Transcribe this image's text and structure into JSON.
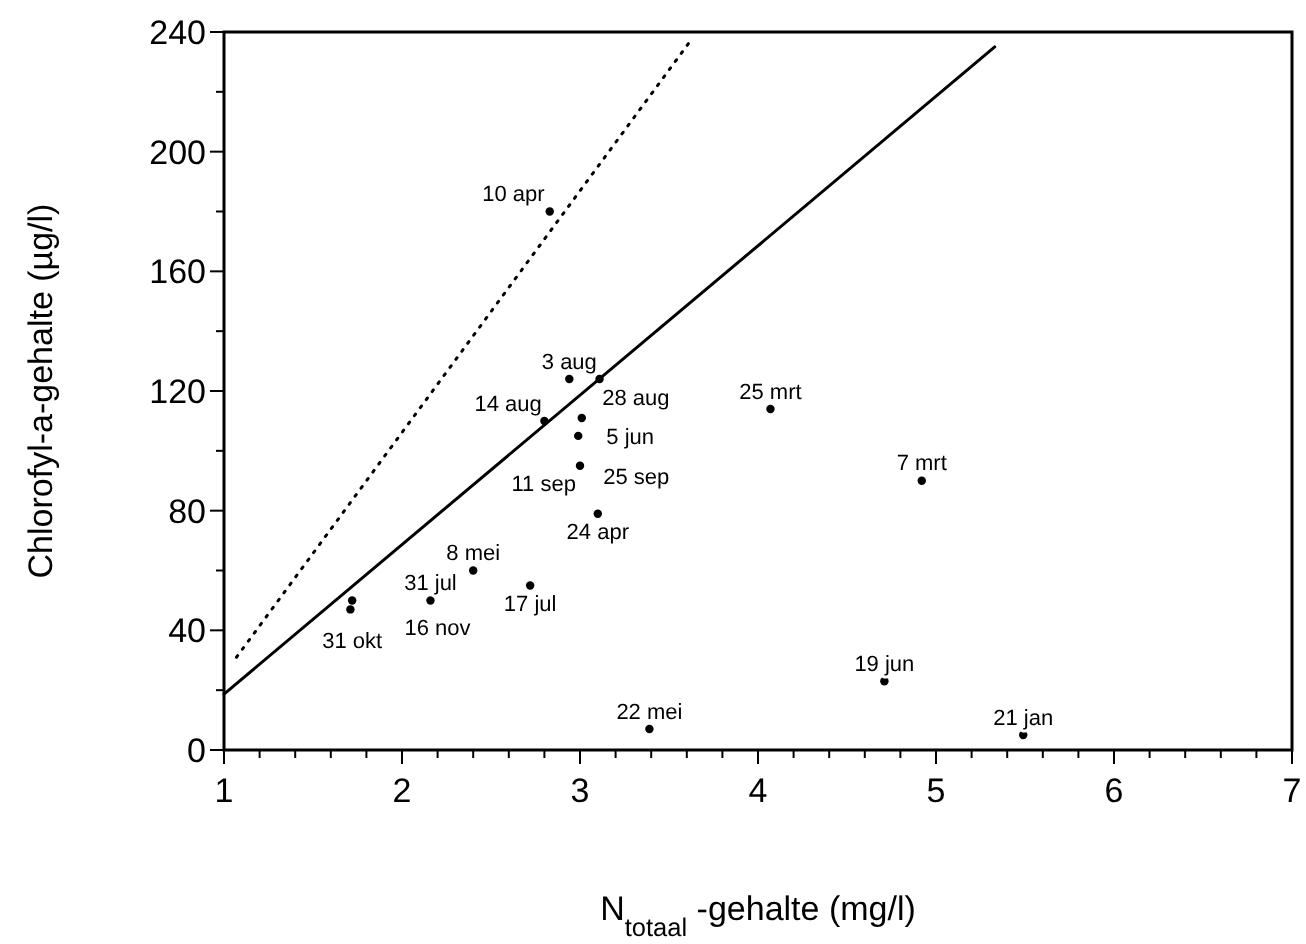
{
  "chart_data": {
    "type": "scatter",
    "xlabel": "N$_{totaal}$ -gehalte (mg/l)",
    "ylabel": "Chlorofyl-a-gehalte (µg/l)",
    "xlim": [
      1,
      7
    ],
    "ylim": [
      0,
      240
    ],
    "xticks": [
      1,
      {
        "value": 1.2,
        "label": null
      },
      {
        "value": 1.4,
        "label": null
      },
      {
        "value": 1.6,
        "label": null
      },
      {
        "value": 1.8,
        "label": null
      },
      2,
      {
        "value": 2.2,
        "label": null
      },
      {
        "value": 2.4,
        "label": null
      },
      {
        "value": 2.6,
        "label": null
      },
      {
        "value": 2.8,
        "label": null
      },
      3,
      {
        "value": 3.2,
        "label": null
      },
      {
        "value": 3.4,
        "label": null
      },
      {
        "value": 3.6,
        "label": null
      },
      {
        "value": 3.8,
        "label": null
      },
      4,
      {
        "value": 4.2,
        "label": null
      },
      {
        "value": 4.4,
        "label": null
      },
      {
        "value": 4.6,
        "label": null
      },
      {
        "value": 4.8,
        "label": null
      },
      5,
      {
        "value": 5.2,
        "label": null
      },
      {
        "value": 5.4,
        "label": null
      },
      {
        "value": 5.6,
        "label": null
      },
      {
        "value": 5.8,
        "label": null
      },
      6,
      {
        "value": 6.2,
        "label": null
      },
      {
        "value": 6.4,
        "label": null
      },
      {
        "value": 6.6,
        "label": null
      },
      {
        "value": 6.8,
        "label": null
      },
      7
    ],
    "yticks": [
      0,
      {
        "value": 20,
        "label": null
      },
      40,
      {
        "value": 60,
        "label": null
      },
      80,
      {
        "value": 100,
        "label": null
      },
      120,
      {
        "value": 140,
        "label": null
      },
      160,
      {
        "value": 180,
        "label": null
      },
      200,
      {
        "value": 220,
        "label": null
      },
      240
    ],
    "series": [
      {
        "marker": "circle",
        "color": "#000000",
        "x": [
          2.83,
          2.94,
          3.11,
          4.07,
          2.8,
          3.01,
          2.99,
          3.0,
          3.1,
          4.92,
          2.4,
          2.72,
          1.72,
          1.71,
          2.16,
          4.71,
          3.39,
          5.49
        ],
        "values": [
          180,
          124,
          124,
          114,
          110,
          111,
          105,
          95,
          79,
          90,
          60,
          55,
          50,
          47,
          50,
          23,
          7,
          5
        ]
      },
      {
        "type": "line",
        "line_style": "solid",
        "color": "#000000",
        "x": [
          1,
          5.33
        ],
        "values": [
          18.7,
          235
        ]
      },
      {
        "type": "line",
        "line_style": "dotted",
        "color": "#000000",
        "x": [
          1.07,
          3.62
        ],
        "values": [
          31,
          237
        ]
      }
    ],
    "annotations": [
      {
        "text": "10 apr",
        "x": 2.83,
        "y": 180
      },
      {
        "text": "3 aug",
        "x": 2.94,
        "y": 124
      },
      {
        "text": "28 aug",
        "x": 3.11,
        "y": 124
      },
      {
        "text": "25 mrt",
        "x": 4.07,
        "y": 114
      },
      {
        "text": "14 aug",
        "x": 2.8,
        "y": 110
      },
      {
        "text": "5 jun",
        "x": 3.01,
        "y": 111
      },
      {
        "text": "25 sep",
        "x": 2.99,
        "y": 105
      },
      {
        "text": "11 sep",
        "x": 3.0,
        "y": 95
      },
      {
        "text": "24 apr",
        "x": 3.1,
        "y": 79
      },
      {
        "text": "7 mrt",
        "x": 4.92,
        "y": 90
      },
      {
        "text": "8 mei",
        "x": 2.4,
        "y": 60
      },
      {
        "text": "17 jul",
        "x": 2.72,
        "y": 55
      },
      {
        "text": "31 okt",
        "x": 1.72,
        "y": 50
      },
      {
        "text": "16 nov",
        "x": 1.71,
        "y": 47
      },
      {
        "text": "31 jul",
        "x": 2.16,
        "y": 50
      },
      {
        "text": "19 jun",
        "x": 4.71,
        "y": 23
      },
      {
        "text": "22 mei",
        "x": 3.39,
        "y": 7
      },
      {
        "text": "21 jan",
        "x": 5.49,
        "y": 5
      }
    ]
  }
}
